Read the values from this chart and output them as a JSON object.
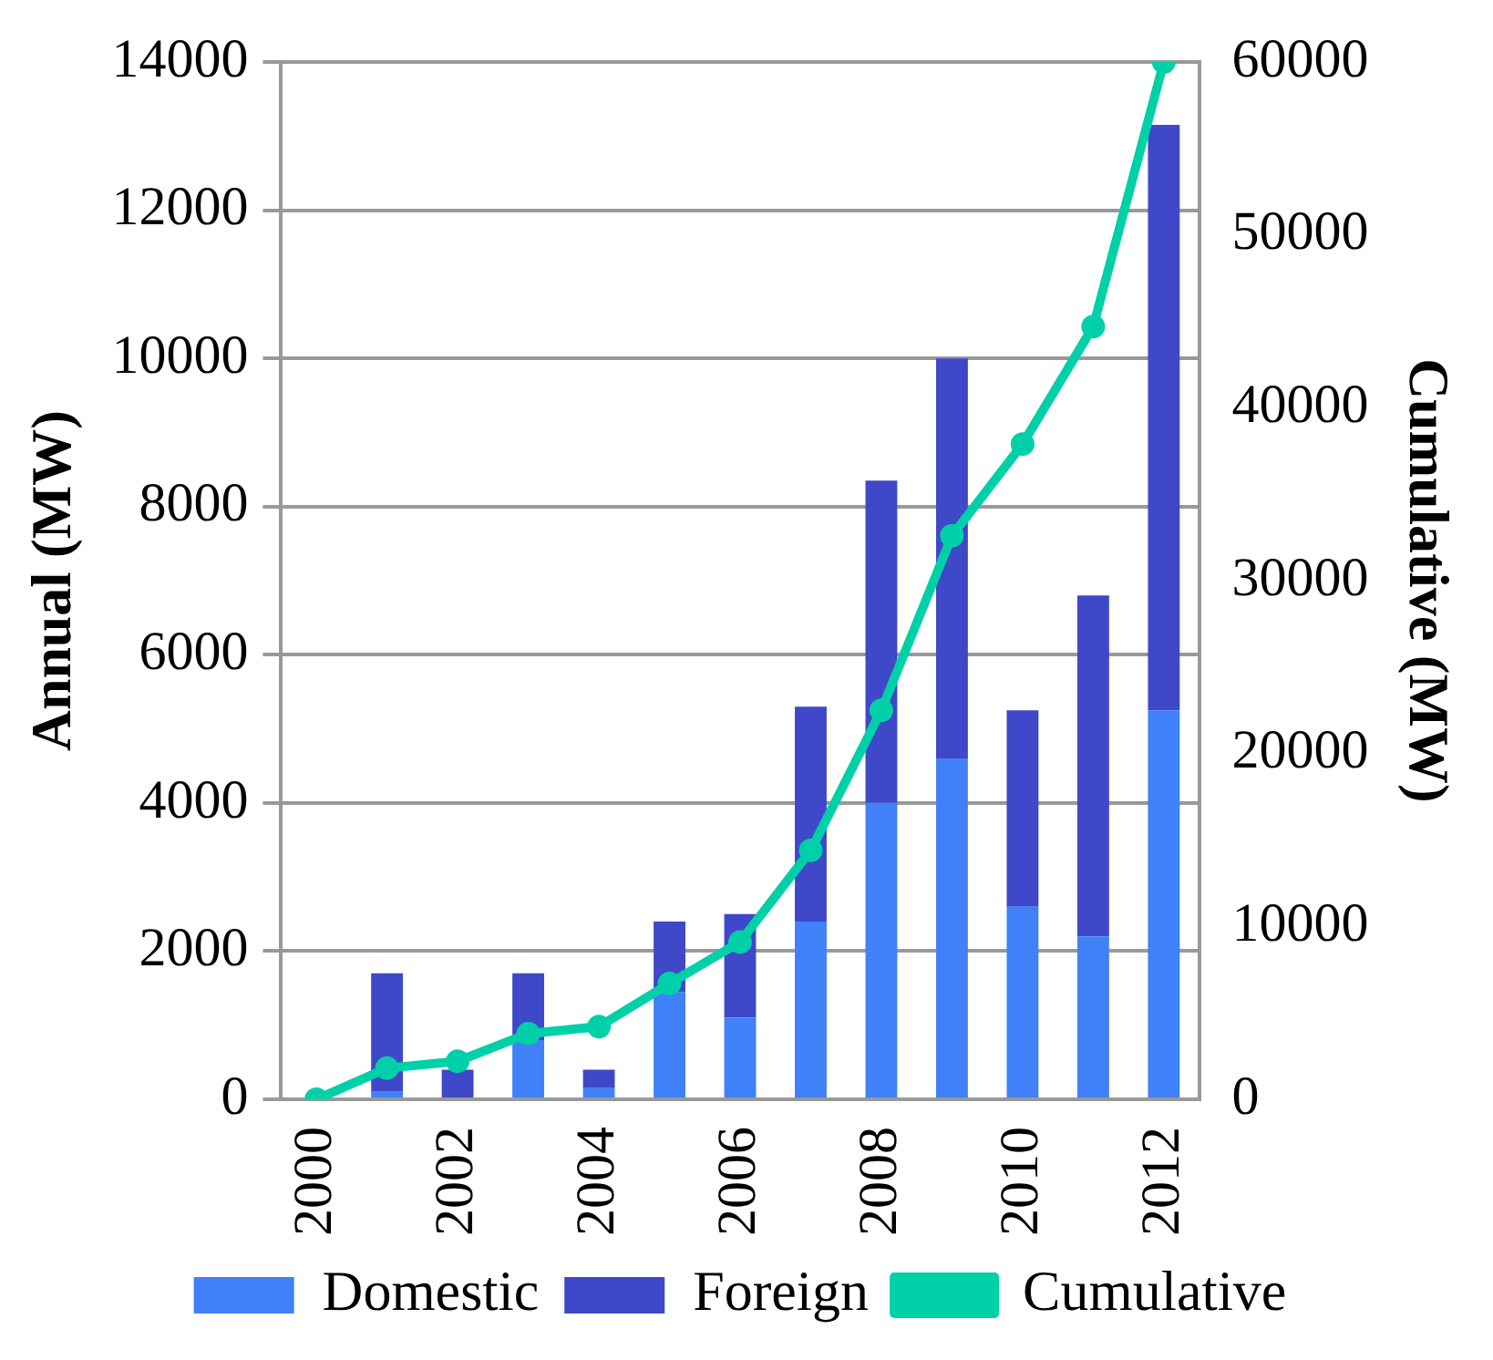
{
  "chart_data": {
    "type": "bar",
    "stacked": true,
    "ylabel": "Annual (MW)",
    "y2label": "Cumulative (MW)",
    "categories": [
      "2000",
      null,
      "2002",
      null,
      "2004",
      null,
      "2006",
      null,
      "2008",
      null,
      "2010",
      null,
      "2012"
    ],
    "series": [
      {
        "name": "Domestic",
        "color": "#4080f8",
        "values": [
          0,
          100,
          0,
          800,
          150,
          1450,
          1100,
          2400,
          4000,
          4600,
          2600,
          2200,
          5250
        ]
      },
      {
        "name": "Foreign",
        "color": "#3f48c8",
        "values": [
          null,
          1600,
          400,
          900,
          250,
          950,
          1400,
          2900,
          4350,
          5400,
          2650,
          4600,
          7900
        ]
      },
      {
        "name": "Cumulative",
        "type": "line",
        "axis": "y2",
        "color": "#00d0a8",
        "marker": "circle",
        "values": [
          0,
          1800,
          2200,
          3800,
          4200,
          6700,
          9100,
          14400,
          22500,
          32600,
          37900,
          44700,
          60000
        ]
      }
    ],
    "ylim": [
      0,
      14000
    ],
    "yticks": [
      0,
      2000,
      4000,
      6000,
      8000,
      10000,
      12000,
      14000
    ],
    "y2lim": [
      0,
      60000
    ],
    "y2ticks": [
      0,
      10000,
      20000,
      30000,
      40000,
      50000,
      60000
    ],
    "grid": "y",
    "legend": "bottom"
  }
}
